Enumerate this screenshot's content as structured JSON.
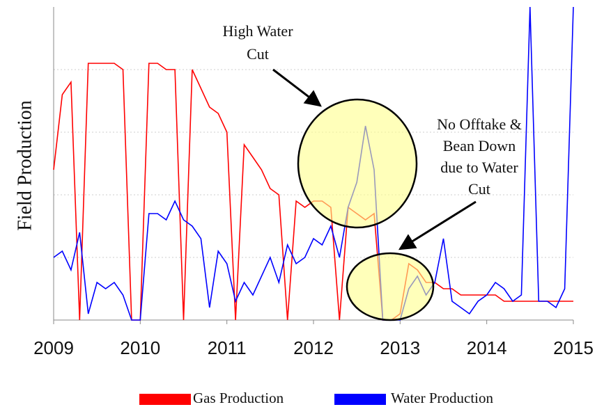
{
  "chart_data": {
    "type": "line",
    "y_label": "Field Production",
    "xlim": [
      2009,
      2015
    ],
    "xticks": [
      2009,
      2010,
      2011,
      2012,
      2013,
      2014,
      2015
    ],
    "ylim": [
      0,
      5
    ],
    "yticks": [
      1,
      2,
      3,
      4
    ],
    "grid": true,
    "x": [
      2009.0,
      2009.1,
      2009.2,
      2009.3,
      2009.4,
      2009.5,
      2009.6,
      2009.7,
      2009.8,
      2009.9,
      2010.0,
      2010.1,
      2010.2,
      2010.3,
      2010.4,
      2010.5,
      2010.6,
      2010.7,
      2010.8,
      2010.9,
      2011.0,
      2011.1,
      2011.2,
      2011.3,
      2011.4,
      2011.5,
      2011.6,
      2011.7,
      2011.8,
      2011.9,
      2012.0,
      2012.1,
      2012.2,
      2012.3,
      2012.4,
      2012.5,
      2012.6,
      2012.7,
      2012.8,
      2012.9,
      2013.0,
      2013.1,
      2013.2,
      2013.3,
      2013.4,
      2013.5,
      2013.6,
      2013.7,
      2013.8,
      2013.9,
      2014.0,
      2014.1,
      2014.2,
      2014.3,
      2014.4,
      2014.5,
      2014.6,
      2014.7,
      2014.8,
      2014.9,
      2015.0
    ],
    "series": [
      {
        "name": "Gas Production",
        "color": "#ff0000",
        "values": [
          2.4,
          3.6,
          3.8,
          0,
          4.1,
          4.1,
          4.1,
          4.1,
          4.0,
          0,
          0,
          4.1,
          4.1,
          4.0,
          4.0,
          0,
          4.0,
          3.7,
          3.4,
          3.3,
          3.0,
          0,
          2.8,
          2.6,
          2.4,
          2.1,
          2.0,
          0,
          1.9,
          1.8,
          1.9,
          1.9,
          1.8,
          0,
          1.8,
          1.7,
          1.6,
          1.7,
          0,
          0,
          0.1,
          0.9,
          0.8,
          0.6,
          0.6,
          0.5,
          0.5,
          0.4,
          0.4,
          0.4,
          0.4,
          0.4,
          0.3,
          0.3,
          0.3,
          0.3,
          0.3,
          0.3,
          0.3,
          0.3,
          0.3
        ]
      },
      {
        "name": "Water Production",
        "color": "#0000ff",
        "values": [
          1.0,
          1.1,
          0.8,
          1.4,
          0.1,
          0.6,
          0.5,
          0.6,
          0.4,
          0.0,
          0.0,
          1.7,
          1.7,
          1.6,
          1.9,
          1.6,
          1.5,
          1.3,
          0.2,
          1.1,
          0.9,
          0.3,
          0.6,
          0.4,
          0.7,
          1.0,
          0.6,
          1.2,
          0.9,
          1.0,
          1.3,
          1.2,
          1.5,
          1.0,
          1.8,
          2.2,
          3.1,
          2.4,
          0,
          0,
          0,
          0.5,
          0.7,
          0.4,
          0.6,
          1.3,
          0.3,
          0.2,
          0.1,
          0.3,
          0.4,
          0.6,
          0.5,
          0.3,
          0.4,
          5.0,
          0.3,
          0.3,
          0.2,
          0.5,
          5.0
        ]
      }
    ],
    "annotations": [
      {
        "text": [
          "High Water",
          "Cut"
        ]
      },
      {
        "text": [
          "No Offtake &",
          "Bean Down",
          "due to Water",
          "Cut"
        ]
      }
    ]
  }
}
